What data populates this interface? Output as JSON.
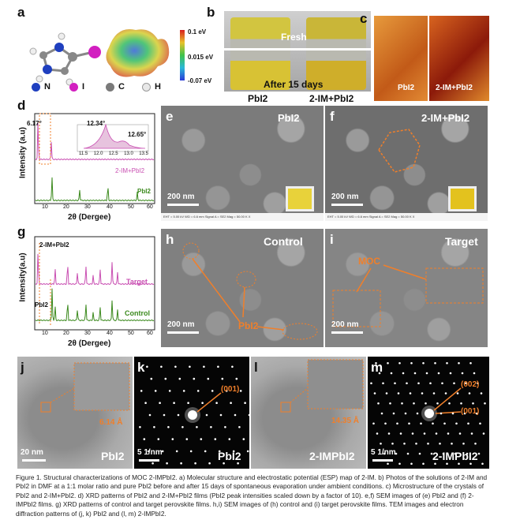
{
  "labels": {
    "a": "a",
    "b": "b",
    "c": "c",
    "d": "d",
    "e": "e",
    "f": "f",
    "g": "g",
    "h": "h",
    "i": "i",
    "j": "j",
    "k": "k",
    "l": "l",
    "m": "m"
  },
  "panel_a": {
    "scale_max": "0.1 eV",
    "scale_mid": "0.015 eV",
    "scale_min": "-0.07 eV",
    "legend": [
      {
        "symbol": "N",
        "color": "#1f3fbf"
      },
      {
        "symbol": "I",
        "color": "#d21fc0"
      },
      {
        "symbol": "C",
        "color": "#7a7a7a"
      },
      {
        "symbol": "H",
        "color": "#e8e8e8"
      }
    ]
  },
  "panel_b": {
    "fresh": "Fresh",
    "after": "After 15 days",
    "left": "PbI2",
    "right": "2-IM+PbI2"
  },
  "panel_c": {
    "left": "PbI2",
    "right": "2-IM+PbI2"
  },
  "panel_d": {
    "ylabel": "Intensity (a.u)",
    "xlabel": "2θ (Dergee)",
    "peak_main": "6.17°",
    "peak_a": "12.34°",
    "peak_b": "12.65°",
    "inset_ticks": [
      "11.5",
      "12.0",
      "12.5",
      "13.0",
      "13.5"
    ],
    "top_label": "2-IM+PbI2",
    "bottom_label": "PbI2",
    "xticks": [
      "10",
      "20",
      "30",
      "40",
      "50",
      "60"
    ]
  },
  "panel_e": {
    "title": "PbI2",
    "scale": "200 nm"
  },
  "panel_f": {
    "title": "2-IM+PbI2",
    "scale": "200 nm"
  },
  "panel_g": {
    "ylabel": "Intensity(a.u)",
    "xlabel": "2θ (Dergee)",
    "ann_top": "2-IM+PbI2",
    "ann_bottom": "PbI2",
    "top_label": "Target",
    "bottom_label": "Control",
    "xticks": [
      "10",
      "20",
      "30",
      "40",
      "50",
      "60"
    ]
  },
  "panel_h": {
    "title": "Control",
    "scale": "200 nm",
    "ann": "PbI2"
  },
  "panel_i": {
    "title": "Target",
    "scale": "200 nm",
    "ann": "MOC"
  },
  "panel_j": {
    "scale": "20 nm",
    "ann": "6.14 Å",
    "title": "PbI2"
  },
  "panel_k": {
    "scale": "5 1/nm",
    "ann": "(001)",
    "title": "PbI2"
  },
  "panel_l": {
    "ann": "14.35 Å",
    "title": "2-IMPbI2"
  },
  "panel_m": {
    "scale": "5 1/nm",
    "ann_a": "(002)",
    "ann_b": "(001)",
    "title": "2-IMPbI2"
  },
  "sem_footer": "EHT = 5.00 kV   WD = 6.6 mm   Signal A = SE2   Mag = 50.00 K X",
  "caption": "Figure 1.  Structural characterizations of MOC 2-IMPbI2. a) Molecular structure and electrostatic potential (ESP) map of 2-IM. b) Photos of the solutions of 2-IM and PbI2 in DMF at a 1:1 molar ratio and pure PbI2 before and after 15 days of spontaneous evaporation under ambient conditions. c) Microstructure of the crystals of PbI2 and 2-IM+PbI2. d) XRD patterns of PbI2 and 2-IM+PbI2 films (PbI2 peak intensities scaled down by a factor of 10). e,f) SEM images of (e) PbI2 and (f) 2-IMPbI2 films. g) XRD patterns of control and target perovskite films. h,i) SEM images of (h) control and (i) target perovskite films. TEM images and electron diffraction patterns of (j, k) PbI2 and (l, m) 2-IMPbI2.",
  "chart_data": [
    {
      "type": "line",
      "panel": "d",
      "xlabel": "2θ (Dergee)",
      "ylabel": "Intensity (a.u)",
      "xlim": [
        5,
        60
      ],
      "series": [
        {
          "name": "2-IM+PbI2",
          "peaks": [
            6.17,
            12.34
          ]
        },
        {
          "name": "PbI2",
          "peaks": [
            12.65,
            25.5,
            38.6,
            52.3
          ]
        }
      ]
    },
    {
      "type": "line",
      "panel": "g",
      "xlabel": "2θ (Dergee)",
      "ylabel": "Intensity(a.u)",
      "xlim": [
        5,
        60
      ],
      "series": [
        {
          "name": "Target",
          "peaks": [
            6.2,
            14.1,
            19.9,
            24.5,
            28.4,
            31.8,
            35.0,
            40.6,
            43.1
          ]
        },
        {
          "name": "Control",
          "peaks": [
            12.7,
            14.1,
            19.9,
            24.5,
            28.4,
            31.8,
            35.0,
            40.6,
            43.1
          ]
        }
      ]
    }
  ]
}
